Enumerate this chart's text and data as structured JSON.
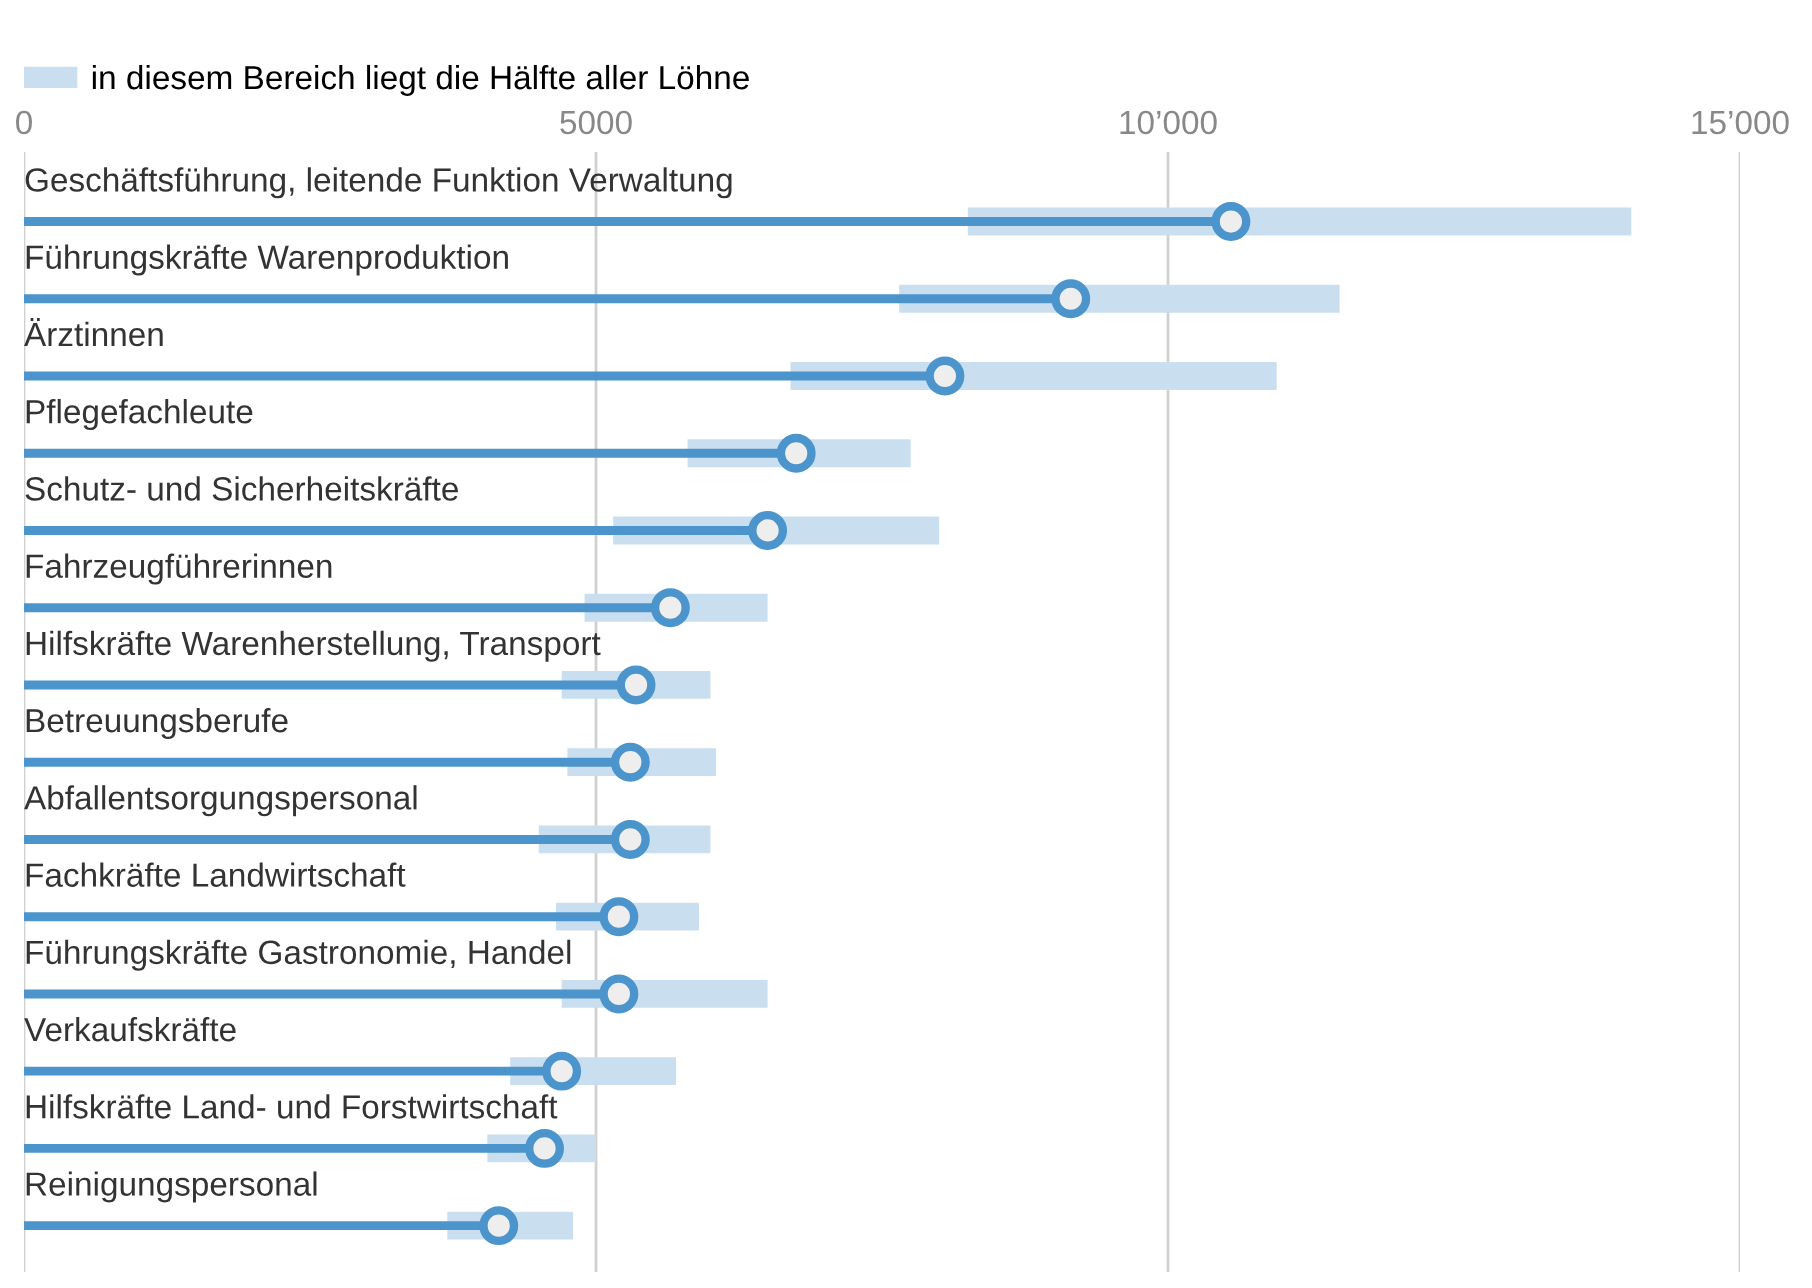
{
  "chart_data": {
    "type": "bar",
    "orientation": "horizontal",
    "categories": [
      "Geschäftsführung, leitende Funktion Verwaltung",
      "Führungskräfte Warenproduktion",
      "Ärztinnen",
      "Pflegefachleute",
      "Schutz- und Sicherheitskräfte",
      "Fahrzeugführerinnen",
      "Hilfskräfte Warenherstellung, Transport",
      "Betreuungsberufe",
      "Abfallentsorgungspersonal",
      "Fachkräfte Landwirtschaft",
      "Führungskräfte Gastronomie, Handel",
      "Verkaufskräfte",
      "Hilfskräfte Land- und Forstwirtschaft",
      "Reinigungspersonal"
    ],
    "series": [
      {
        "name": "in diesem Bereich liegt die Hälfte aller Löhne",
        "color": "#c9dff0",
        "base": [
          8250,
          7650,
          6700,
          5800,
          5150,
          4900,
          4700,
          4750,
          4500,
          4650,
          4700,
          4250,
          4050,
          3700
        ],
        "values": [
          5800,
          3850,
          4250,
          1950,
          2850,
          1600,
          1300,
          1300,
          1500,
          1250,
          1800,
          1450,
          950,
          1100
        ]
      },
      {
        "type": "lollipop",
        "color": "#4b94cc",
        "marker": "circle",
        "values": [
          10550,
          9150,
          8050,
          6750,
          6500,
          5650,
          5350,
          5300,
          5300,
          5200,
          5200,
          4700,
          4550,
          4150
        ]
      }
    ],
    "xlim": [
      0,
      15000
    ],
    "xticks": [
      0,
      5000,
      {
        "value": 10000,
        "label": "10’000"
      },
      {
        "value": 15000,
        "label": "15’000"
      }
    ],
    "grid": "x",
    "legend": "top left"
  }
}
